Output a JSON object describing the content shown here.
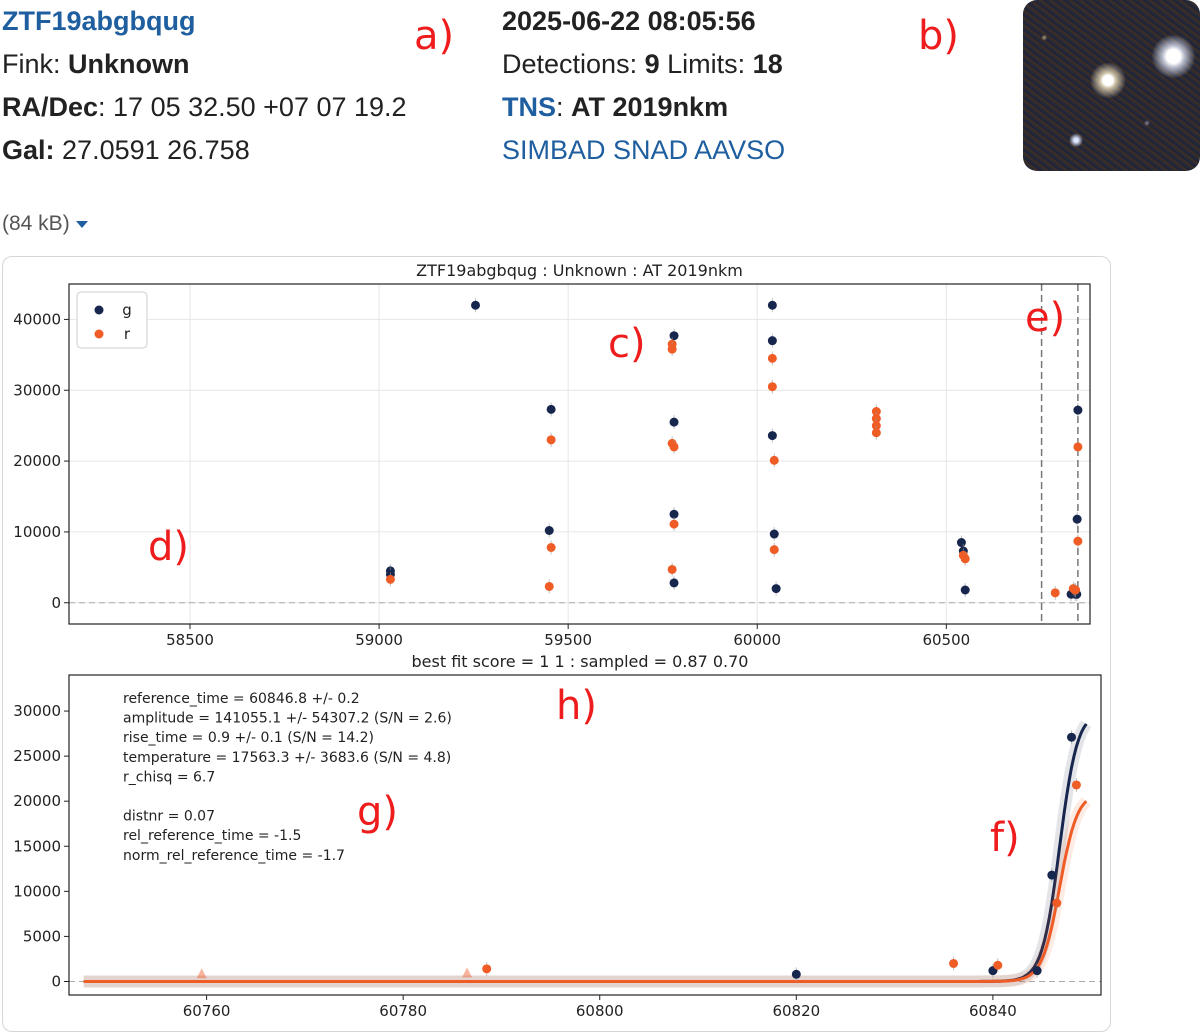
{
  "header": {
    "object_id": "ZTF19abgbqug",
    "fink_label": "Fink:",
    "fink_class": "Unknown",
    "radec_label": "RA/Dec",
    "radec_value": ": 17 05 32.50 +07 07 19.2",
    "gal_label": "Gal:",
    "gal_value": "27.0591 26.758",
    "datetime": "2025-06-22 08:05:56",
    "detections_label": "Detections:",
    "detections": "9",
    "limits_label": "Limits:",
    "limits": "18",
    "tns_label": "TNS",
    "tns_value": "AT 2019nkm",
    "links": [
      "SIMBAD",
      "SNAD",
      "AAVSO"
    ],
    "filesize": "(84 kB)"
  },
  "annotations": [
    "a)",
    "b)",
    "c)",
    "d)",
    "e)",
    "f)",
    "g)",
    "h)"
  ],
  "colors": {
    "g": "#17264d",
    "r": "#f05c25",
    "link": "#1f5fa0",
    "annot": "#ee1c1c"
  },
  "chart_data": [
    {
      "type": "scatter",
      "title": "ZTF19abgbqug  :  Unknown  :  AT 2019nkm",
      "xlim": [
        58180,
        60880
      ],
      "ylim": [
        -3000,
        45000
      ],
      "xticks": [
        58500,
        59000,
        59500,
        60000,
        60500
      ],
      "yticks": [
        0,
        10000,
        20000,
        30000,
        40000
      ],
      "grid": true,
      "legend_position": "top-left",
      "vlines": [
        60752,
        60848
      ],
      "series": [
        {
          "name": "g",
          "points": [
            [
              59030,
              4500
            ],
            [
              59030,
              4000
            ],
            [
              59255,
              42000
            ],
            [
              59455,
              27300
            ],
            [
              59450,
              10200
            ],
            [
              59780,
              37700
            ],
            [
              59780,
              25500
            ],
            [
              59780,
              12500
            ],
            [
              59780,
              2800
            ],
            [
              60040,
              42000
            ],
            [
              60040,
              37000
            ],
            [
              60040,
              23600
            ],
            [
              60045,
              9700
            ],
            [
              60050,
              2000
            ],
            [
              60540,
              8500
            ],
            [
              60545,
              7300
            ],
            [
              60550,
              1800
            ],
            [
              60830,
              1200
            ],
            [
              60845,
              1200
            ],
            [
              60848,
              27200
            ],
            [
              60846,
              11800
            ],
            [
              60841,
              1200
            ]
          ]
        },
        {
          "name": "r",
          "points": [
            [
              59030,
              3300
            ],
            [
              59455,
              23000
            ],
            [
              59455,
              7800
            ],
            [
              59450,
              2300
            ],
            [
              59775,
              36500
            ],
            [
              59775,
              35800
            ],
            [
              59775,
              22500
            ],
            [
              59780,
              22000
            ],
            [
              59780,
              11100
            ],
            [
              59775,
              4700
            ],
            [
              60040,
              34500
            ],
            [
              60040,
              30500
            ],
            [
              60045,
              20100
            ],
            [
              60045,
              7500
            ],
            [
              60315,
              27000
            ],
            [
              60315,
              26000
            ],
            [
              60315,
              25000
            ],
            [
              60315,
              24000
            ],
            [
              60545,
              6700
            ],
            [
              60550,
              6200
            ],
            [
              60788,
              1400
            ],
            [
              60836,
              2000
            ],
            [
              60840,
              1800
            ],
            [
              60848,
              22000
            ],
            [
              60848,
              8700
            ],
            [
              60842,
              1800
            ]
          ]
        }
      ]
    },
    {
      "type": "line",
      "title": "best fit score = 1 1  : sampled = 0.87 0.70",
      "xlim": [
        60746,
        60851
      ],
      "ylim": [
        -1500,
        34000
      ],
      "xticks": [
        60760,
        60780,
        60800,
        60820,
        60840
      ],
      "yticks": [
        0,
        5000,
        10000,
        15000,
        20000,
        25000,
        30000
      ],
      "grid": false,
      "fit_text": [
        "reference_time = 60846.8 +/- 0.2",
        "amplitude = 141055.1 +/- 54307.2 (S/N = 2.6)",
        "rise_time = 0.9 +/- 0.1 (S/N = 14.2)",
        "temperature = 17563.3 +/- 3683.6 (S/N = 4.8)",
        "r_chisq = 6.7",
        "",
        "distnr = 0.07",
        "rel_reference_time = -1.5",
        "norm_rel_reference_time = -1.7"
      ],
      "fit": {
        "t0": 60846.8,
        "rise_time": 0.9,
        "g_peak": 30000,
        "r_peak": 21000,
        "x_end": 60849.5
      },
      "series": [
        {
          "name": "g",
          "points": [
            [
              60820,
              800
            ],
            [
              60840,
              1200
            ],
            [
              60844.5,
              1200
            ],
            [
              60846,
              11800
            ],
            [
              60848,
              27100
            ]
          ]
        },
        {
          "name": "r",
          "points": [
            [
              60788.5,
              1400
            ],
            [
              60836,
              2000
            ],
            [
              60840.5,
              1800
            ],
            [
              60846.5,
              8700
            ],
            [
              60848.5,
              21800
            ]
          ]
        },
        {
          "name": "r-limits",
          "points": [
            [
              60759.5,
              800
            ],
            [
              60786.5,
              900
            ]
          ]
        }
      ]
    }
  ]
}
